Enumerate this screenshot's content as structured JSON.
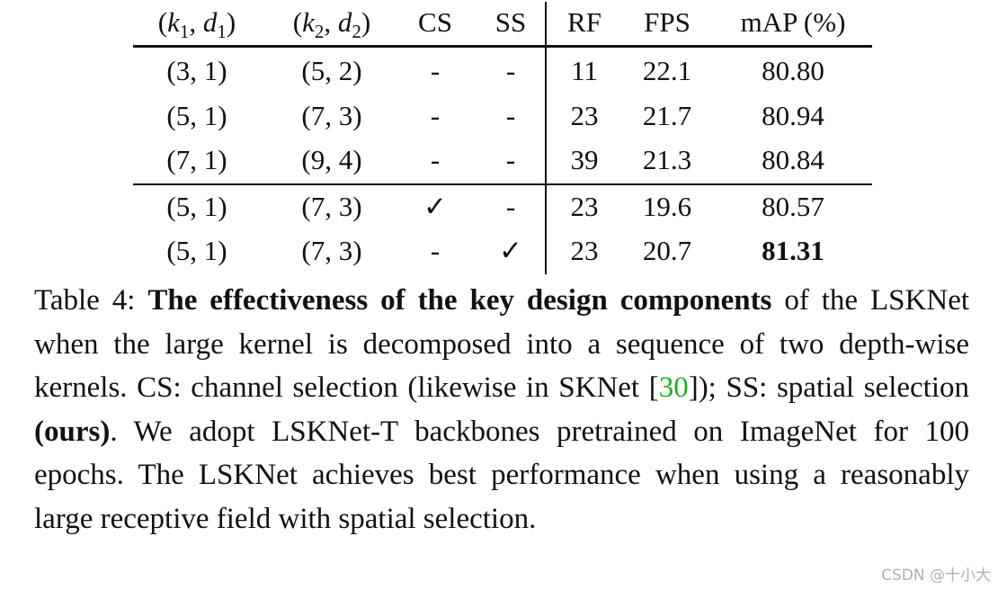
{
  "table": {
    "headers": {
      "k1d1": "(k1, d1)",
      "k2d2": "(k2, d2)",
      "cs": "CS",
      "ss": "SS",
      "rf": "RF",
      "fps": "FPS",
      "map": "mAP (%)"
    },
    "rows": [
      {
        "k1d1": "(3, 1)",
        "k2d2": "(5, 2)",
        "cs": "-",
        "ss": "-",
        "rf": "11",
        "fps": "22.1",
        "map": "80.80"
      },
      {
        "k1d1": "(5, 1)",
        "k2d2": "(7, 3)",
        "cs": "-",
        "ss": "-",
        "rf": "23",
        "fps": "21.7",
        "map": "80.94"
      },
      {
        "k1d1": "(7, 1)",
        "k2d2": "(9, 4)",
        "cs": "-",
        "ss": "-",
        "rf": "39",
        "fps": "21.3",
        "map": "80.84"
      },
      {
        "k1d1": "(5, 1)",
        "k2d2": "(7, 3)",
        "cs": "✓",
        "ss": "-",
        "rf": "23",
        "fps": "19.6",
        "map": "80.57"
      },
      {
        "k1d1": "(5, 1)",
        "k2d2": "(7, 3)",
        "cs": "-",
        "ss": "✓",
        "rf": "23",
        "fps": "20.7",
        "map": "81.31"
      }
    ],
    "best_map_row": 4
  },
  "caption": {
    "label": "Table 4: ",
    "bold_title": "The effectiveness of the key design components",
    "part1": " of the LSKNet when the large kernel is decomposed into a sequence of two depth-wise kernels.  CS: channel selection (likewise in SKNet [",
    "cite": "30",
    "part2": "]); SS: spatial selection ",
    "ours": "(ours)",
    "part3": ".  We adopt LSKNet-T backbones pretrained on ImageNet for 100 epochs. The LSKNet achieves best performance when using a reasonably large receptive field with spatial selection."
  },
  "watermark": "CSDN @十小大"
}
